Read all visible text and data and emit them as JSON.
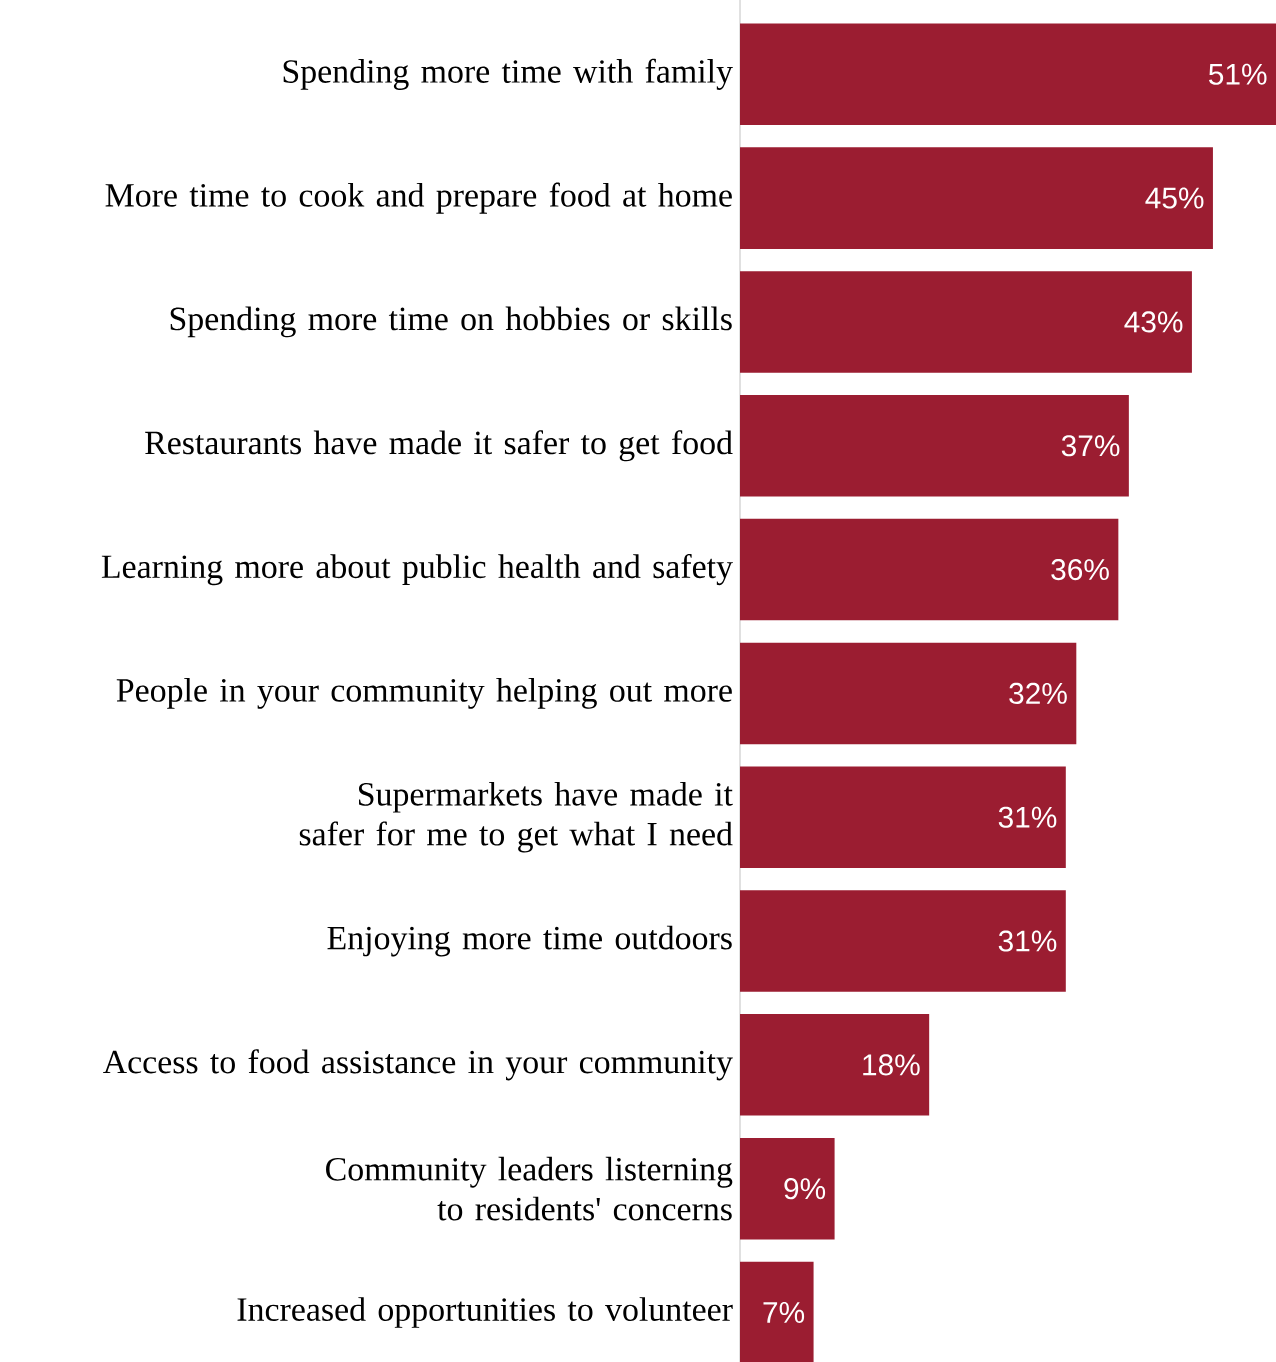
{
  "chart_data": {
    "type": "bar",
    "orientation": "horizontal",
    "categories": [
      "Spending more time with family",
      "More time to cook and prepare food at home",
      "Spending more time on hobbies or skills",
      "Restaurants have made it safer to get food",
      "Learning more about public health and safety",
      "People in your community helping out more",
      "Supermarkets have made it safer for me to get what I need",
      "Enjoying more time outdoors",
      "Access to food assistance in your community",
      "Community leaders listerning to residents' concerns",
      "Increased opportunities to volunteer"
    ],
    "values": [
      51,
      45,
      43,
      37,
      36,
      32,
      31,
      31,
      18,
      9,
      7
    ],
    "value_labels": [
      "51%",
      "45%",
      "43%",
      "37%",
      "36%",
      "32%",
      "31%",
      "31%",
      "18%",
      "9%",
      "7%"
    ],
    "color": "#9b1d31",
    "xlim": [
      0,
      51
    ],
    "tick_labels": "y"
  }
}
